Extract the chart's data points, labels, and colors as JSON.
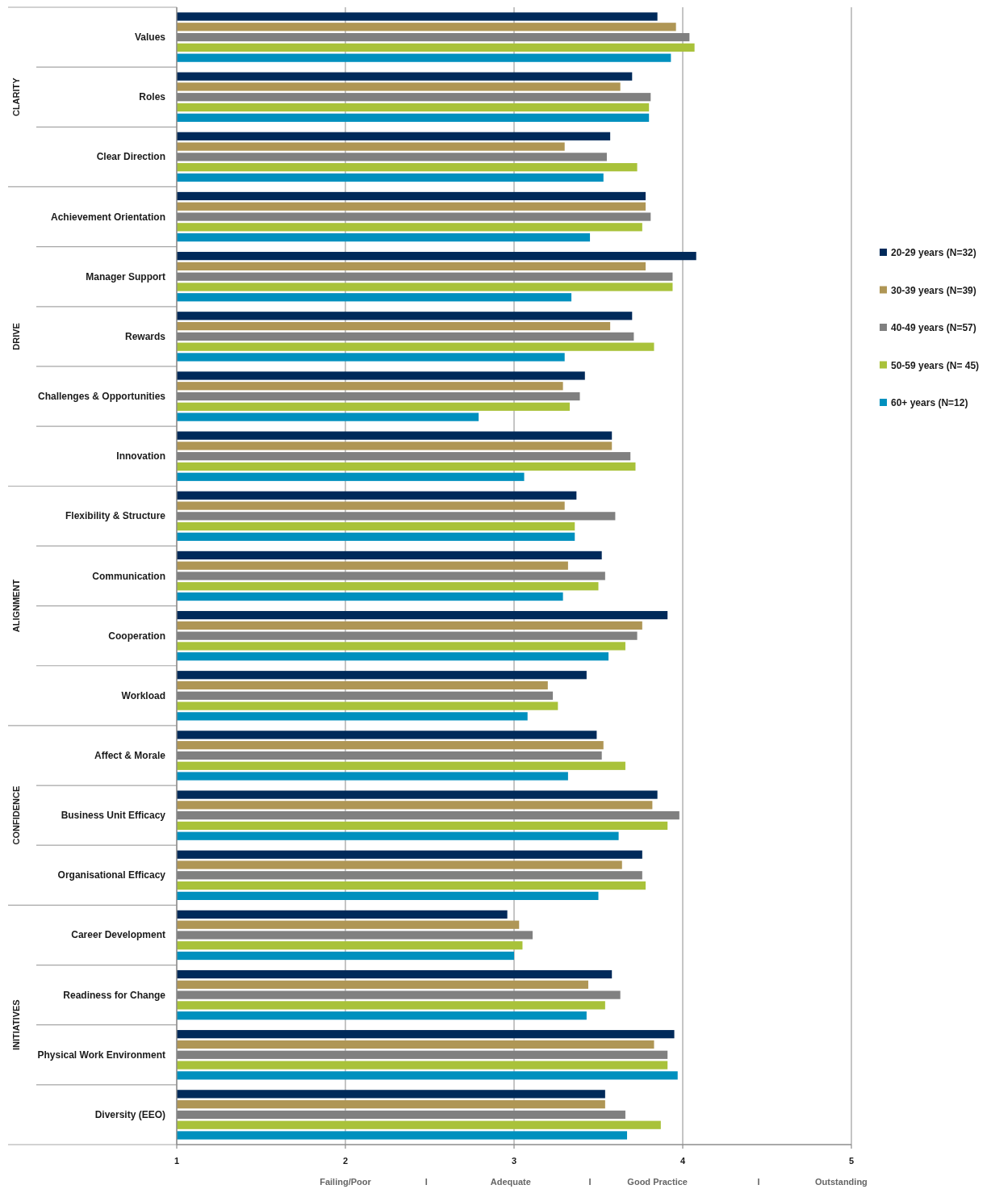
{
  "chart_data": {
    "type": "bar",
    "orientation": "horizontal",
    "categories": [
      "Values",
      "Roles",
      "Clear Direction",
      "Achievement Orientation",
      "Manager Support",
      "Rewards",
      "Challenges & Opportunities",
      "Innovation",
      "Flexibility & Structure",
      "Communication",
      "Cooperation",
      "Workload",
      "Affect & Morale",
      "Business Unit Efficacy",
      "Organisational Efficacy",
      "Career Development",
      "Readiness for Change",
      "Physical Work Environment",
      "Diversity (EEO)"
    ],
    "series": [
      {
        "name": "20-29 years (N=32)",
        "color": "#002a5a",
        "values": [
          3.85,
          3.7,
          3.57,
          3.78,
          4.08,
          3.7,
          3.42,
          3.58,
          3.37,
          3.52,
          3.91,
          3.43,
          3.49,
          3.85,
          3.76,
          2.96,
          3.58,
          3.95,
          3.54
        ]
      },
      {
        "name": "30-39 years (N=39)",
        "color": "#af9655",
        "values": [
          3.96,
          3.63,
          3.3,
          3.78,
          3.78,
          3.57,
          3.29,
          3.58,
          3.3,
          3.32,
          3.76,
          3.2,
          3.53,
          3.82,
          3.64,
          3.03,
          3.44,
          3.83,
          3.54
        ]
      },
      {
        "name": "40-49 years (N=57)",
        "color": "#808080",
        "values": [
          4.04,
          3.81,
          3.55,
          3.81,
          3.94,
          3.71,
          3.39,
          3.69,
          3.6,
          3.54,
          3.73,
          3.23,
          3.52,
          3.98,
          3.76,
          3.11,
          3.63,
          3.91,
          3.66
        ]
      },
      {
        "name": "50-59 years (N= 45)",
        "color": "#a9c23a",
        "values": [
          4.07,
          3.8,
          3.73,
          3.76,
          3.94,
          3.83,
          3.33,
          3.72,
          3.36,
          3.5,
          3.66,
          3.26,
          3.66,
          3.91,
          3.78,
          3.05,
          3.54,
          3.91,
          3.87
        ]
      },
      {
        "name": "60+ years (N=12)",
        "color": "#0090be",
        "values": [
          3.93,
          3.8,
          3.53,
          3.45,
          3.34,
          3.3,
          2.79,
          3.06,
          3.36,
          3.29,
          3.56,
          3.08,
          3.32,
          3.62,
          3.5,
          3.0,
          3.43,
          3.97,
          3.67
        ]
      }
    ],
    "xlim": [
      1,
      5
    ],
    "xticks": [
      1,
      2,
      3,
      4,
      5
    ],
    "grid": "x",
    "legend": "right",
    "annotations": [
      "CLARITY",
      "DRIVE",
      "ALIGNMENT",
      "CONFIDENCE",
      "INITIATIVES",
      "Failing/Poor",
      "I",
      "Adequate",
      "I",
      "Good Practice",
      "I",
      "Outstanding"
    ]
  }
}
